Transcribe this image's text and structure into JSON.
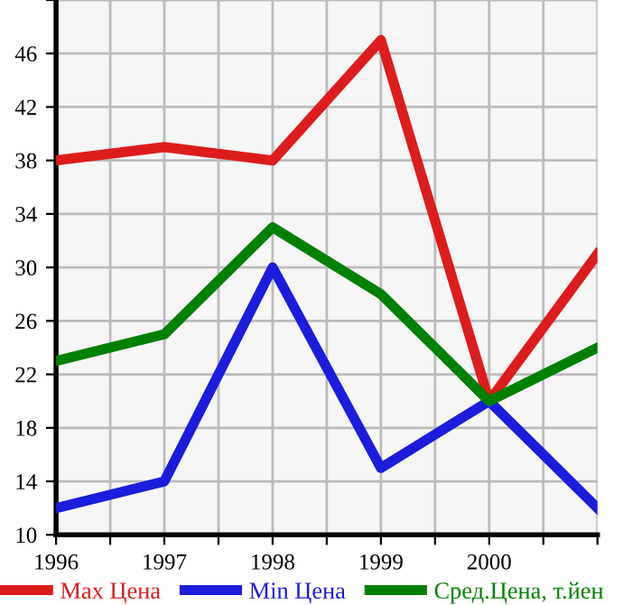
{
  "chart_data": {
    "type": "line",
    "x": [
      1996,
      1997,
      1998,
      1999,
      2000,
      2001
    ],
    "series": [
      {
        "name": "Max Цена",
        "color": "#dd1c1c",
        "values": [
          38,
          39,
          38,
          47,
          20,
          31
        ]
      },
      {
        "name": "Min Цена",
        "color": "#1c1cdd",
        "values": [
          12,
          14,
          30,
          15,
          20,
          12
        ]
      },
      {
        "name": "Сред.Цена, т.йен",
        "color": "#008000",
        "values": [
          23,
          25,
          33,
          28,
          20,
          24
        ]
      }
    ],
    "xlim": [
      1996,
      2001
    ],
    "xticks": [
      1996,
      {
        "value": 1996.5,
        "label": null
      },
      1997,
      {
        "value": 1997.5,
        "label": null
      },
      1998,
      {
        "value": 1998.5,
        "label": null
      },
      1999,
      {
        "value": 1999.5,
        "label": null
      },
      2000,
      {
        "value": 2000.5,
        "label": null
      },
      {
        "value": 2001,
        "label": null
      }
    ],
    "ylim": [
      10,
      50
    ],
    "yticks": [
      10,
      14,
      18,
      22,
      26,
      30,
      34,
      38,
      42,
      46,
      {
        "value": 50,
        "label": null
      }
    ],
    "grid": true,
    "legend": "bottom",
    "marker": "none",
    "line_style": "solid"
  }
}
